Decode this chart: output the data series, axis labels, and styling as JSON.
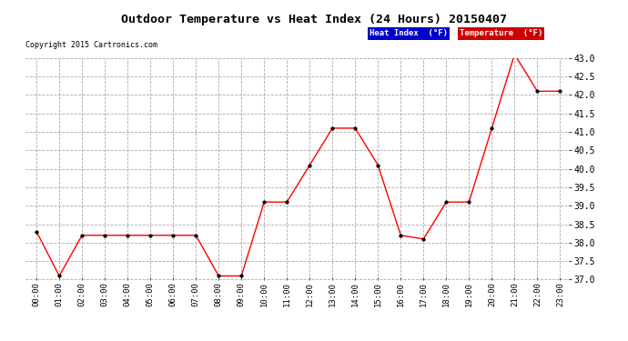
{
  "title": "Outdoor Temperature vs Heat Index (24 Hours) 20150407",
  "copyright": "Copyright 2015 Cartronics.com",
  "x_labels": [
    "00:00",
    "01:00",
    "02:00",
    "03:00",
    "04:00",
    "05:00",
    "06:00",
    "07:00",
    "08:00",
    "09:00",
    "10:00",
    "11:00",
    "12:00",
    "13:00",
    "14:00",
    "15:00",
    "16:00",
    "17:00",
    "18:00",
    "19:00",
    "20:00",
    "21:00",
    "22:00",
    "23:00"
  ],
  "temperature": [
    38.3,
    37.1,
    38.2,
    38.2,
    38.2,
    38.2,
    38.2,
    38.2,
    37.1,
    37.1,
    39.1,
    39.1,
    40.1,
    41.1,
    41.1,
    40.1,
    38.2,
    38.1,
    39.1,
    39.1,
    41.1,
    43.1,
    42.1,
    42.1
  ],
  "ylim": [
    37.0,
    43.0
  ],
  "yticks": [
    37.0,
    37.5,
    38.0,
    38.5,
    39.0,
    39.5,
    40.0,
    40.5,
    41.0,
    41.5,
    42.0,
    42.5,
    43.0
  ],
  "temp_color": "#ff0000",
  "background_color": "#ffffff",
  "grid_color": "#aaaaaa",
  "legend_heat_bg": "#0000cc",
  "legend_temp_bg": "#cc0000",
  "legend_heat_text": "Heat Index  (°F)",
  "legend_temp_text": "Temperature  (°F)"
}
